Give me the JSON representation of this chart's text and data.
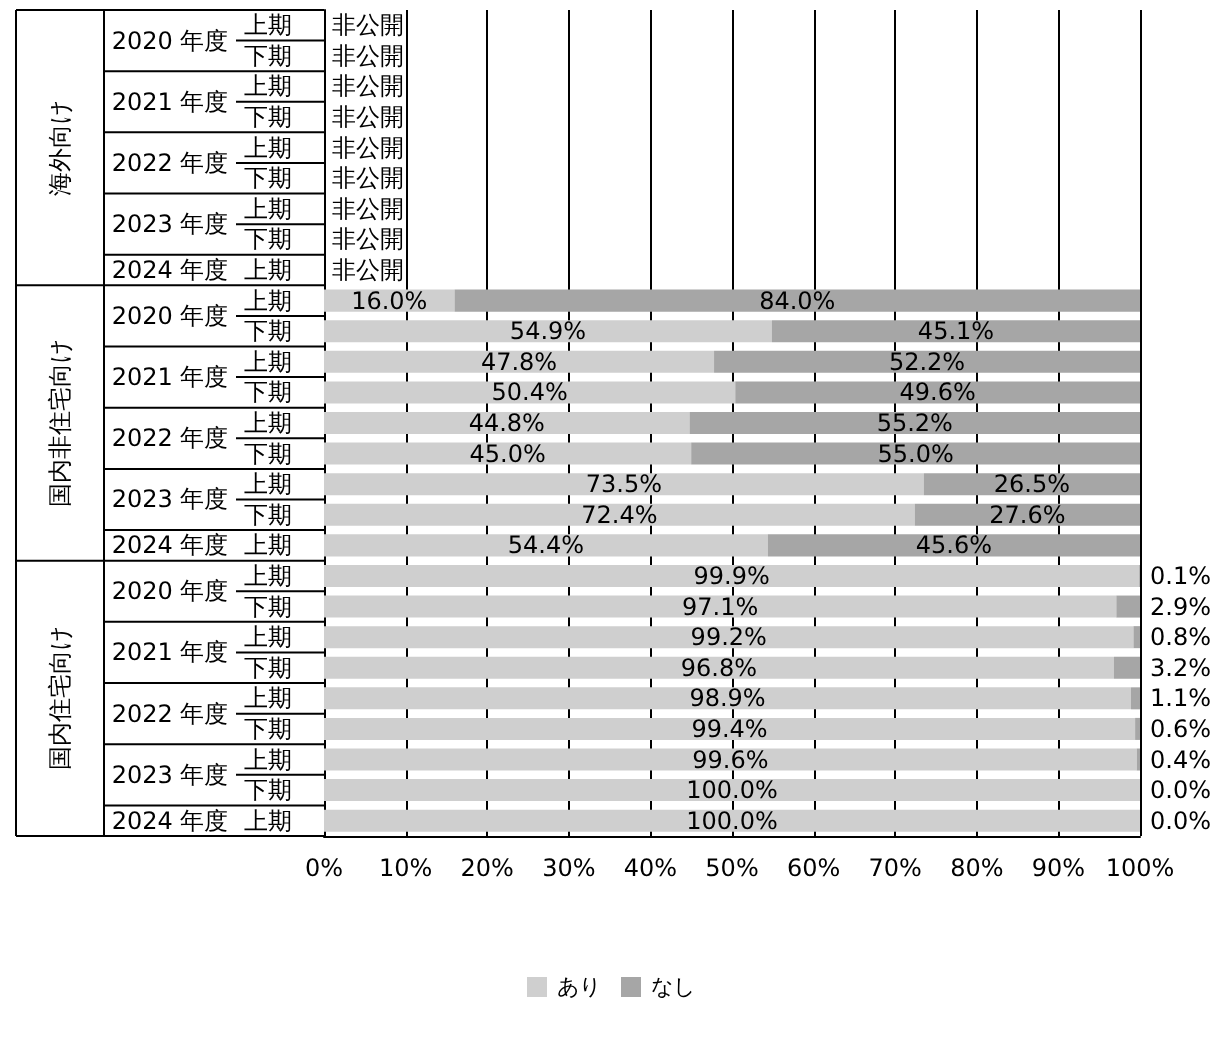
{
  "chart_data": {
    "type": "bar",
    "orientation": "horizontal",
    "stacked": true,
    "categories": [
      "上期",
      "下期",
      "上期",
      "下期",
      "上期",
      "下期",
      "上期",
      "下期",
      "上期",
      "上期",
      "下期",
      "上期",
      "下期",
      "上期",
      "下期",
      "上期",
      "下期",
      "上期",
      "上期",
      "下期",
      "上期",
      "下期",
      "上期",
      "下期",
      "上期",
      "下期",
      "上期"
    ],
    "annotations": [
      "海外向け",
      "2020 年度",
      "2021 年度",
      "2022 年度",
      "2023 年度",
      "2024 年度",
      "国内非住宅向け",
      "2020 年度",
      "2021 年度",
      "2022 年度",
      "2023 年度",
      "2024 年度",
      "国内住宅向け",
      "2020 年度",
      "2021 年度",
      "2022 年度",
      "2023 年度",
      "2024 年度"
    ],
    "series": [
      {
        "name": "あり",
        "color": "#cfcfcf",
        "values": [
          null,
          null,
          null,
          null,
          null,
          null,
          null,
          null,
          null,
          16.0,
          54.9,
          47.8,
          50.4,
          44.8,
          45.0,
          73.5,
          72.4,
          54.4,
          99.9,
          97.1,
          99.2,
          96.8,
          98.9,
          99.4,
          99.6,
          100.0,
          100.0
        ],
        "value_labels": [
          "非公開",
          "非公開",
          "非公開",
          "非公開",
          "非公開",
          "非公開",
          "非公開",
          "非公開",
          "非公開",
          "16.0%",
          "54.9%",
          "47.8%",
          "50.4%",
          "44.8%",
          "45.0%",
          "73.5%",
          "72.4%",
          "54.4%",
          "99.9%",
          "97.1%",
          "99.2%",
          "96.8%",
          "98.9%",
          "99.4%",
          "99.6%",
          "100.0%",
          "100.0%"
        ]
      },
      {
        "name": "なし",
        "color": "#a6a6a6",
        "values": [
          null,
          null,
          null,
          null,
          null,
          null,
          null,
          null,
          null,
          84.0,
          45.1,
          52.2,
          49.6,
          55.2,
          55.0,
          26.5,
          27.6,
          45.6,
          0.1,
          2.9,
          0.8,
          3.2,
          1.1,
          0.6,
          0.4,
          0.0,
          0.0
        ],
        "value_labels": [
          null,
          null,
          null,
          null,
          null,
          null,
          null,
          null,
          null,
          "84.0%",
          "45.1%",
          "52.2%",
          "49.6%",
          "55.2%",
          "55.0%",
          "26.5%",
          "27.6%",
          "45.6%",
          "0.1%",
          "2.9%",
          "0.8%",
          "3.2%",
          "1.1%",
          "0.6%",
          "0.4%",
          "0.0%",
          "0.0%"
        ]
      }
    ],
    "xlim": [
      0,
      100
    ],
    "xticks": [
      {
        "value": 0,
        "label": "0%"
      },
      {
        "value": 10,
        "label": "10%"
      },
      {
        "value": 20,
        "label": "20%"
      },
      {
        "value": 30,
        "label": "30%"
      },
      {
        "value": 40,
        "label": "40%"
      },
      {
        "value": 50,
        "label": "50%"
      },
      {
        "value": 60,
        "label": "60%"
      },
      {
        "value": 70,
        "label": "70%"
      },
      {
        "value": 80,
        "label": "80%"
      },
      {
        "value": 90,
        "label": "90%"
      },
      {
        "value": 100,
        "label": "100%"
      }
    ],
    "grid": "x",
    "legend": "bottom"
  }
}
